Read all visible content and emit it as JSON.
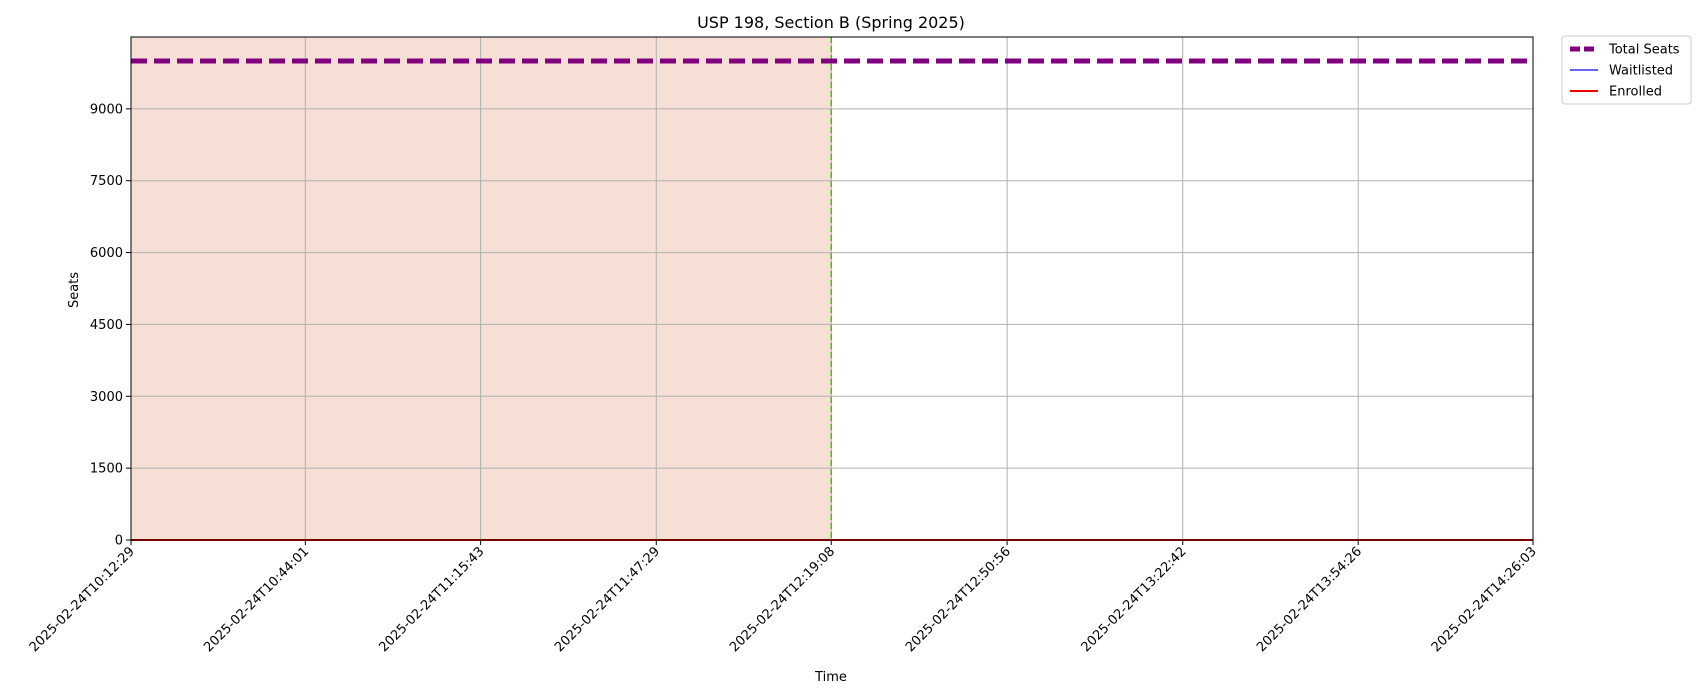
{
  "chart_data": {
    "type": "line",
    "title": "USP 198, Section B (Spring 2025)",
    "xlabel": "Time",
    "ylabel": "Seats",
    "x_ticks": [
      "2025-02-24T10:12:29",
      "2025-02-24T10:44:01",
      "2025-02-24T11:15:43",
      "2025-02-24T11:47:29",
      "2025-02-24T12:19:08",
      "2025-02-24T12:50:56",
      "2025-02-24T13:22:42",
      "2025-02-24T13:54:26",
      "2025-02-24T14:26:03"
    ],
    "y_ticks": [
      0,
      1500,
      3000,
      4500,
      6000,
      7500,
      9000
    ],
    "ylim": [
      0,
      10500
    ],
    "grid": true,
    "legend_position": "outside top-right",
    "series": [
      {
        "name": "Total Seats",
        "style": "dashed",
        "color": "#800080",
        "x": [
          "2025-02-24T10:12:29",
          "2025-02-24T14:26:03"
        ],
        "values": [
          10000,
          10000
        ]
      },
      {
        "name": "Waitlisted",
        "style": "solid",
        "color": "#3333ff",
        "x": [
          "2025-02-24T10:12:29",
          "2025-02-24T14:26:03"
        ],
        "values": [
          0,
          0
        ]
      },
      {
        "name": "Enrolled",
        "style": "solid",
        "color": "#ee0000",
        "x": [
          "2025-02-24T10:12:29",
          "2025-02-24T14:26:03"
        ],
        "values": [
          0,
          0
        ]
      }
    ],
    "shaded_region": {
      "x_start": "2025-02-24T10:12:29",
      "x_end": "2025-02-24T12:19:08",
      "color": "#f6e0d6"
    },
    "vertical_line": {
      "x": "2025-02-24T12:19:08",
      "color": "#33cc00",
      "style": "dashed"
    }
  }
}
